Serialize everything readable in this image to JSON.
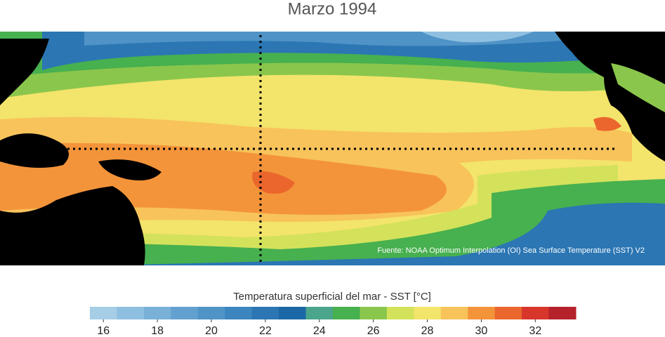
{
  "title": "Marzo 1994",
  "source": "Fuente: NOAA Optimum Interpolation (OI) Sea Surface Temperature (SST) V2",
  "colorbar": {
    "label": "Temperatura superficial del mar - SST  [°C]",
    "lim": [
      15.5,
      33.5
    ],
    "ticks": [
      16,
      18,
      20,
      22,
      24,
      26,
      28,
      30,
      32
    ],
    "colors": [
      "#a6cde6",
      "#8fbfe0",
      "#78b0d8",
      "#62a1cf",
      "#4f93c7",
      "#3d85be",
      "#2b76b3",
      "#1c67a6",
      "#4ba58c",
      "#47b04f",
      "#8bc64c",
      "#d4e25b",
      "#f3e46b",
      "#f8c35b",
      "#f4943a",
      "#ea662c",
      "#d8352b",
      "#b5222a"
    ]
  }
}
